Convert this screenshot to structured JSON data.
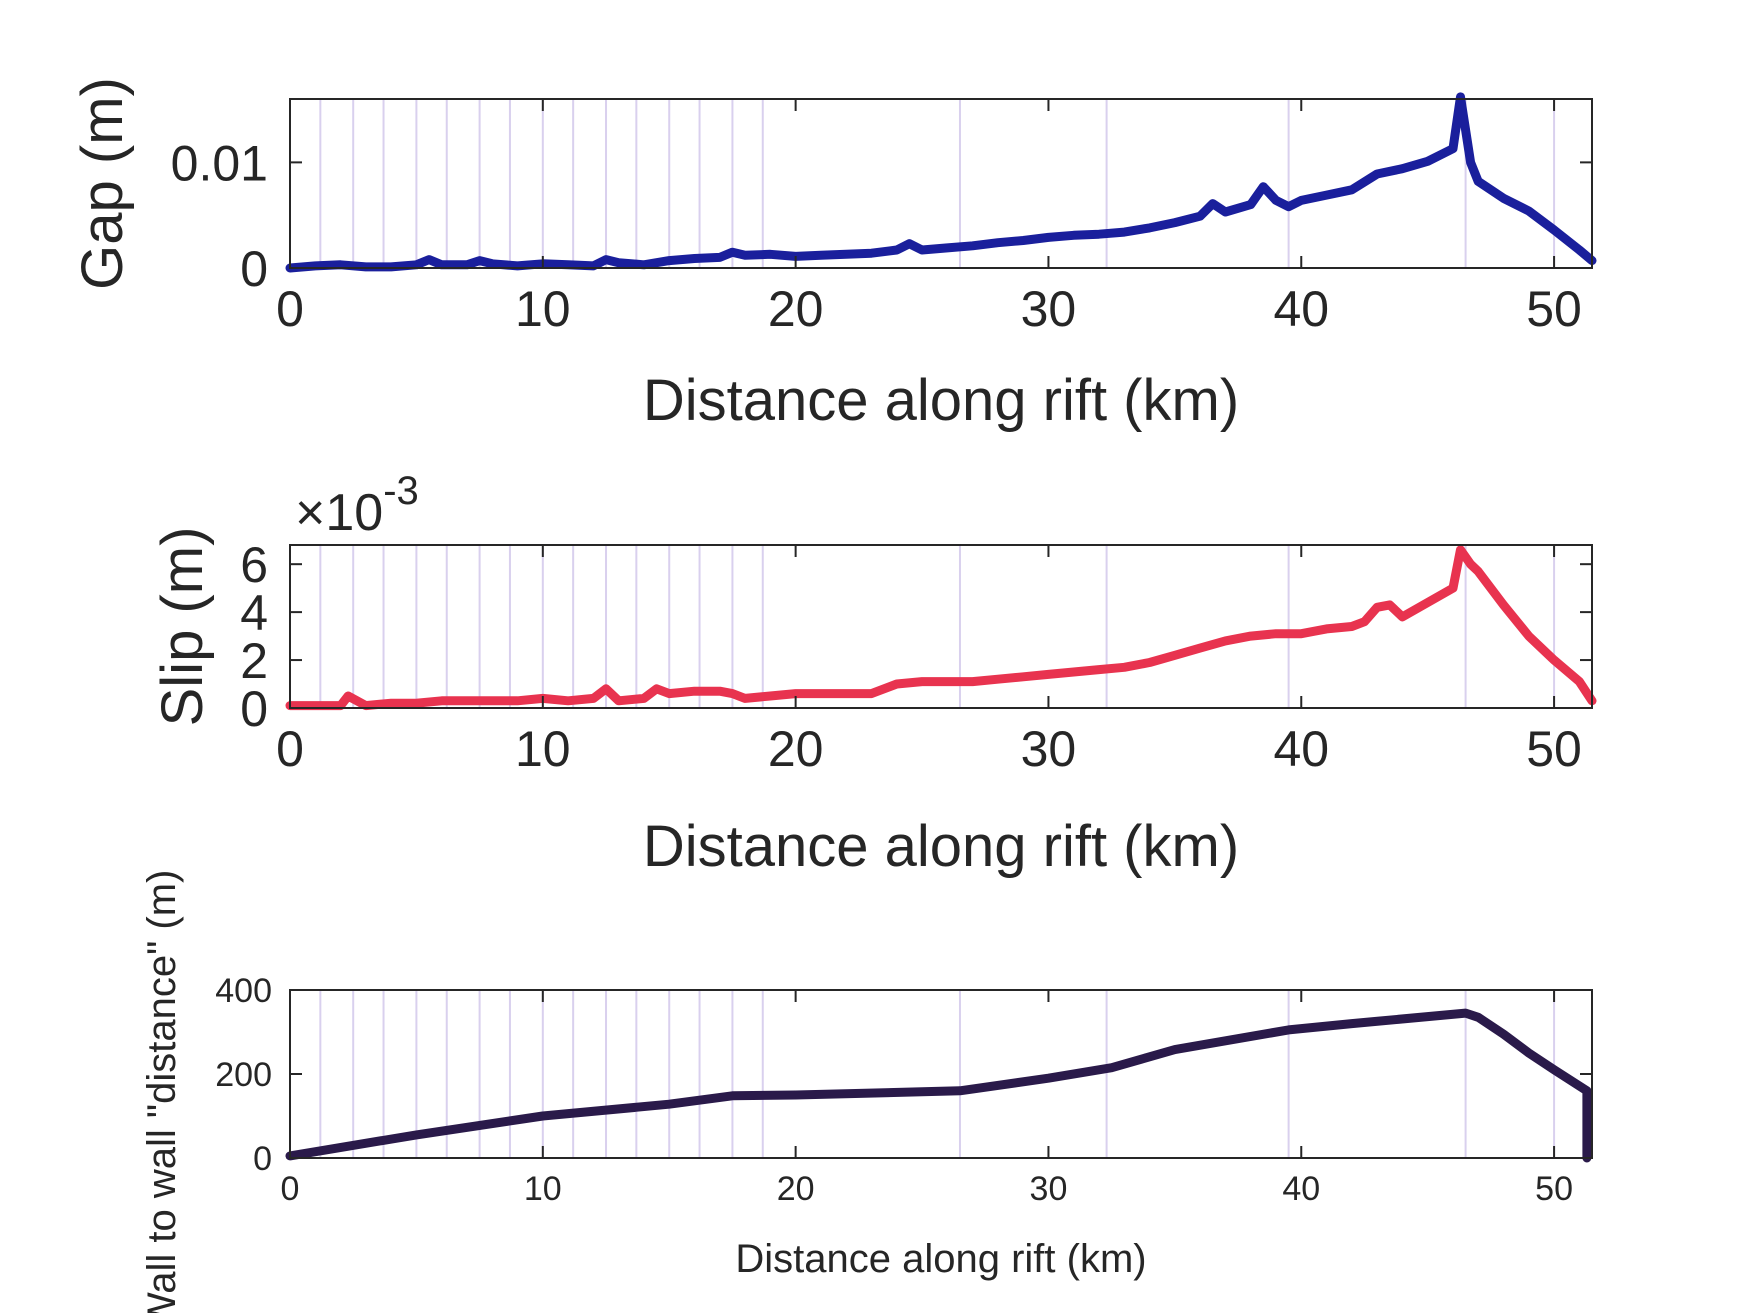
{
  "chart_data": [
    {
      "type": "line",
      "xlabel": "Distance along rift (km)",
      "ylabel": "Gap (m)",
      "xlim": [
        0,
        51.5
      ],
      "ylim": [
        0,
        0.016
      ],
      "xticks": [
        "0",
        "10",
        "20",
        "30",
        "40",
        "50"
      ],
      "xtick_values": [
        0,
        10,
        20,
        30,
        40,
        50
      ],
      "yticks": [
        "0",
        "0.01"
      ],
      "ytick_values": [
        0,
        0.01
      ],
      "color": "#1a1f9c",
      "line_width": "thick",
      "x": [
        0,
        1,
        2,
        3,
        4,
        5,
        5.5,
        6,
        7,
        7.5,
        8,
        9,
        10,
        11,
        12,
        12.5,
        13,
        14,
        15,
        16,
        17,
        17.5,
        18,
        19,
        20,
        21,
        22,
        23,
        24,
        24.5,
        25,
        26,
        27,
        28,
        29,
        30,
        31,
        32,
        33,
        34,
        35,
        36,
        36.5,
        37,
        38,
        38.5,
        39,
        39.5,
        40,
        41,
        42,
        43,
        44,
        45,
        46,
        46.3,
        46.7,
        47,
        48,
        49,
        50,
        51,
        51.5
      ],
      "y": [
        0,
        0.0002,
        0.0003,
        0.0001,
        0.0001,
        0.0003,
        0.0008,
        0.0003,
        0.0003,
        0.0007,
        0.0004,
        0.0002,
        0.0004,
        0.0003,
        0.0002,
        0.0008,
        0.0005,
        0.0003,
        0.0007,
        0.0009,
        0.001,
        0.0015,
        0.0012,
        0.0013,
        0.0011,
        0.0012,
        0.0013,
        0.0014,
        0.0017,
        0.0023,
        0.0017,
        0.0019,
        0.0021,
        0.0024,
        0.0026,
        0.0029,
        0.0031,
        0.0032,
        0.0034,
        0.0038,
        0.0043,
        0.0049,
        0.0061,
        0.0053,
        0.006,
        0.0077,
        0.0064,
        0.0058,
        0.0064,
        0.0069,
        0.0074,
        0.0089,
        0.0094,
        0.0101,
        0.0113,
        0.0162,
        0.01,
        0.0082,
        0.0066,
        0.0054,
        0.0036,
        0.0017,
        0.0007
      ]
    },
    {
      "type": "line",
      "xlabel": "Distance along rift (km)",
      "ylabel": "Slip (m)",
      "y_exponent": "×10",
      "y_exponent_power": "-3",
      "xlim": [
        0,
        51.5
      ],
      "ylim": [
        0,
        0.0068
      ],
      "xticks": [
        "0",
        "10",
        "20",
        "30",
        "40",
        "50"
      ],
      "xtick_values": [
        0,
        10,
        20,
        30,
        40,
        50
      ],
      "yticks": [
        "0",
        "2",
        "4",
        "6"
      ],
      "ytick_values": [
        0,
        0.002,
        0.004,
        0.006
      ],
      "color": "#e8334f",
      "line_width": "thick",
      "x": [
        0,
        1,
        2,
        2.3,
        3,
        4,
        5,
        6,
        7,
        8,
        9,
        10,
        11,
        12,
        12.5,
        13,
        14,
        14.5,
        15,
        16,
        17,
        17.5,
        18,
        19,
        20,
        21,
        22,
        23,
        24,
        25,
        26,
        27,
        28,
        29,
        30,
        31,
        32,
        33,
        34,
        35,
        36,
        37,
        38,
        39,
        40,
        41,
        42,
        42.5,
        43,
        43.5,
        44,
        45,
        46,
        46.3,
        46.7,
        47,
        48,
        49,
        50,
        51,
        51.5
      ],
      "y": [
        0.0001,
        0.0001,
        0.0001,
        0.0005,
        0.0001,
        0.0002,
        0.0002,
        0.0003,
        0.0003,
        0.0003,
        0.0003,
        0.0004,
        0.0003,
        0.0004,
        0.0008,
        0.0003,
        0.0004,
        0.0008,
        0.0006,
        0.0007,
        0.0007,
        0.0006,
        0.0004,
        0.0005,
        0.0006,
        0.0006,
        0.0006,
        0.0006,
        0.001,
        0.0011,
        0.0011,
        0.0011,
        0.0012,
        0.0013,
        0.0014,
        0.0015,
        0.0016,
        0.0017,
        0.0019,
        0.0022,
        0.0025,
        0.0028,
        0.003,
        0.0031,
        0.0031,
        0.0033,
        0.0034,
        0.0036,
        0.0042,
        0.0043,
        0.0038,
        0.0044,
        0.005,
        0.0066,
        0.006,
        0.0057,
        0.0043,
        0.003,
        0.002,
        0.0011,
        0.0003
      ]
    },
    {
      "type": "line",
      "xlabel": "Distance along rift (km)",
      "ylabel": "Wall to wall \"distance\" (m)",
      "xlim": [
        0,
        51.5
      ],
      "ylim": [
        0,
        400
      ],
      "xticks": [
        "0",
        "10",
        "20",
        "30",
        "40",
        "50"
      ],
      "xtick_values": [
        0,
        10,
        20,
        30,
        40,
        50
      ],
      "yticks": [
        "0",
        "200",
        "400"
      ],
      "ytick_values": [
        0,
        200,
        400
      ],
      "color": "#2a1a4a",
      "line_width": "thick",
      "x": [
        0,
        5,
        10,
        15,
        17.5,
        20,
        26.5,
        30,
        32.5,
        35,
        39.5,
        42,
        46.5,
        47,
        48,
        49,
        50,
        51.3,
        51.3
      ],
      "y": [
        5,
        55,
        100,
        128,
        148,
        150,
        160,
        190,
        215,
        258,
        305,
        320,
        345,
        335,
        295,
        250,
        210,
        160,
        0
      ]
    }
  ],
  "segment_boundaries_km": [
    1.2,
    2.5,
    3.7,
    5,
    6.2,
    7.5,
    8.7,
    10,
    11.2,
    12.5,
    13.7,
    15,
    16.2,
    17.5,
    18.7,
    26.5,
    32.3,
    39.5,
    46.5,
    50
  ],
  "segment_line_color": "#d9d0ee"
}
